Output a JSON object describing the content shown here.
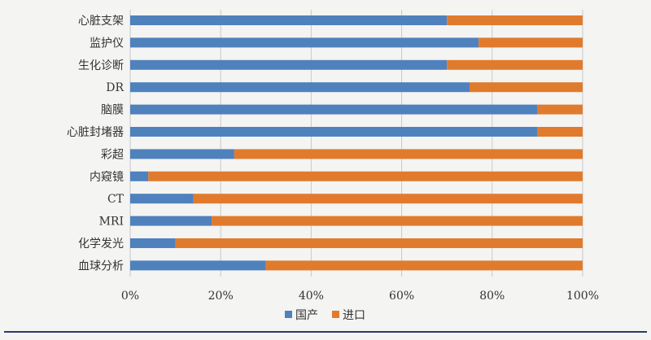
{
  "chart_data": {
    "type": "bar",
    "orientation": "horizontal",
    "stacked": true,
    "categories": [
      "心脏支架",
      "监护仪",
      "生化诊断",
      "DR",
      "脑膜",
      "心脏封堵器",
      "彩超",
      "内窥镜",
      "CT",
      "MRI",
      "化学发光",
      "血球分析"
    ],
    "series": [
      {
        "name": "国产",
        "color": "#4f81bd",
        "values": [
          70,
          77,
          70,
          75,
          90,
          90,
          23,
          4,
          14,
          18,
          10,
          30
        ]
      },
      {
        "name": "进口",
        "color": "#e07b2e",
        "values": [
          30,
          23,
          30,
          25,
          10,
          10,
          77,
          96,
          86,
          82,
          90,
          70
        ]
      }
    ],
    "xlim": [
      0,
      100
    ],
    "x_ticks": [
      "0%",
      "20%",
      "40%",
      "60%",
      "80%",
      "100%"
    ],
    "grid": "vertical",
    "legend_position": "bottom-center"
  }
}
